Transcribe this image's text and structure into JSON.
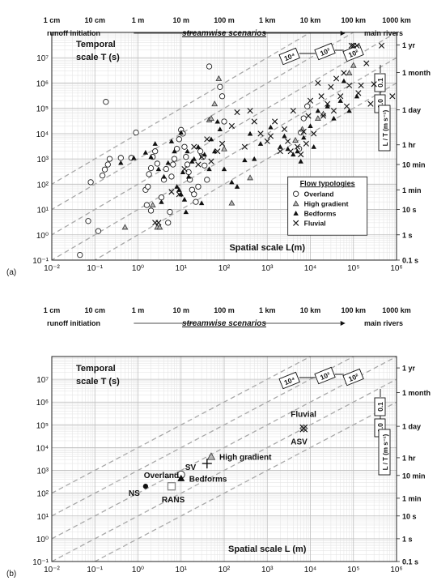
{
  "chart_data": [
    {
      "panel_label": "(a)",
      "type": "scatter",
      "xscale": "log",
      "yscale": "log",
      "xlim": [
        0.01,
        1000000
      ],
      "ylim": [
        0.1,
        100000000
      ],
      "xticks": [
        "10⁻²",
        "10⁻¹",
        "10⁰",
        "10¹",
        "10²",
        "10³",
        "10⁴",
        "10⁵",
        "10⁶"
      ],
      "yticks": [
        "10⁻¹",
        "10⁰",
        "10¹",
        "10²",
        "10³",
        "10⁴",
        "10⁵",
        "10⁶",
        "10⁷"
      ],
      "top_scale": [
        "1 cm",
        "10 cm",
        "1 m",
        "10 m",
        "100 m",
        "1 km",
        "10 km",
        "100 km",
        "1000 km"
      ],
      "top_left_label": "runoff initiation",
      "top_center_label": "streamwise scenarios",
      "top_right_label": "main rivers",
      "right_scale": [
        "1 yr",
        "1 month",
        "1 day",
        "1 hr",
        "10 min",
        "1 min",
        "10 s",
        "1 s",
        "0.1 s"
      ],
      "ylabel_line1": "Temporal",
      "ylabel_line2": "scale T (s)",
      "xlabel": "Spatial scale L(m)",
      "velocity_lines": [
        "10⁴",
        "10³",
        "10²",
        "0.1",
        "1.0"
      ],
      "velocity_axis_label": "L / T (m s⁻¹)",
      "legend_title": "Flow typologies",
      "grid": true,
      "series": [
        {
          "name": "Overland",
          "marker": "circle",
          "points": [
            [
              0.045,
              0.16
            ],
            [
              0.07,
              3.5
            ],
            [
              0.12,
              1.4
            ],
            [
              0.08,
              120
            ],
            [
              0.15,
              220
            ],
            [
              0.17,
              380
            ],
            [
              0.2,
              600
            ],
            [
              0.22,
              1000
            ],
            [
              0.18,
              180000
            ],
            [
              0.4,
              1100
            ],
            [
              0.7,
              1100
            ],
            [
              0.9,
              11000
            ],
            [
              1.5,
              60
            ],
            [
              1.7,
              80
            ],
            [
              1.8,
              250
            ],
            [
              2,
              430
            ],
            [
              2.2,
              1200
            ],
            [
              2.5,
              2000
            ],
            [
              2.8,
              650
            ],
            [
              1.6,
              15
            ],
            [
              2,
              9
            ],
            [
              3.5,
              30
            ],
            [
              4,
              150
            ],
            [
              4.5,
              400
            ],
            [
              5,
              3
            ],
            [
              5.5,
              8
            ],
            [
              6,
              200
            ],
            [
              6.5,
              600
            ],
            [
              7,
              1000
            ],
            [
              8,
              2500
            ],
            [
              9,
              6000
            ],
            [
              10,
              14000
            ],
            [
              11,
              10000
            ],
            [
              12,
              3000
            ],
            [
              13,
              1200
            ],
            [
              14,
              600
            ],
            [
              15,
              300
            ],
            [
              16,
              150
            ],
            [
              18,
              60
            ],
            [
              20,
              40
            ],
            [
              22,
              20
            ],
            [
              25,
              80
            ],
            [
              28,
              2000
            ],
            [
              32,
              1200
            ],
            [
              35,
              550
            ],
            [
              40,
              150
            ],
            [
              45,
              4500000
            ],
            [
              80,
              700000
            ],
            [
              90,
              300000
            ],
            [
              100,
              30000
            ],
            [
              5500,
              2500
            ],
            [
              6000,
              11000
            ],
            [
              7000,
              40000
            ],
            [
              8500,
              120000
            ]
          ]
        },
        {
          "name": "High gradient",
          "marker": "triangle-open",
          "points": [
            [
              0.5,
              2
            ],
            [
              2.2,
              15
            ],
            [
              2.8,
              2
            ],
            [
              3.2,
              2
            ],
            [
              45,
              35000
            ],
            [
              50,
              40000
            ],
            [
              60,
              150000
            ],
            [
              75,
              1500000
            ],
            [
              100,
              2500
            ],
            [
              150,
              18
            ],
            [
              400,
              180
            ],
            [
              4500,
              5500
            ],
            [
              6500,
              15000
            ],
            [
              15000,
              40000
            ],
            [
              20000,
              60000
            ],
            [
              80000,
              2500000
            ],
            [
              100000,
              5000000
            ]
          ]
        },
        {
          "name": "Bedforms",
          "marker": "triangle-filled",
          "points": [
            [
              0.4,
              700
            ],
            [
              0.8,
              1100
            ],
            [
              1.5,
              1800
            ],
            [
              2,
              1200
            ],
            [
              2.5,
              4000
            ],
            [
              3,
              400
            ],
            [
              3.5,
              20
            ],
            [
              4,
              200
            ],
            [
              5,
              700
            ],
            [
              6,
              5000
            ],
            [
              7,
              2000
            ],
            [
              8,
              80
            ],
            [
              9,
              60
            ],
            [
              10,
              40
            ],
            [
              10,
              11000
            ],
            [
              11,
              300
            ],
            [
              12,
              25
            ],
            [
              13,
              8
            ],
            [
              14,
              2000
            ],
            [
              15,
              200
            ],
            [
              18,
              800
            ],
            [
              20,
              1000
            ],
            [
              25,
              3000
            ],
            [
              30,
              18
            ],
            [
              35,
              1500
            ],
            [
              45,
              400
            ],
            [
              50,
              6000
            ],
            [
              60,
              2000
            ],
            [
              70,
              30000
            ],
            [
              80,
              15000
            ],
            [
              100,
              400
            ],
            [
              150,
              120
            ],
            [
              200,
              80
            ],
            [
              300,
              900
            ],
            [
              400,
              10000
            ],
            [
              500,
              1000
            ],
            [
              700,
              4000
            ],
            [
              1200,
              18000
            ],
            [
              2000,
              3000
            ],
            [
              2500,
              8000
            ],
            [
              3000,
              2500
            ],
            [
              4000,
              1500
            ],
            [
              5000,
              2000
            ],
            [
              6000,
              800
            ],
            [
              7000,
              7000
            ],
            [
              10000,
              20000
            ],
            [
              12000,
              3000
            ],
            [
              15000,
              80000
            ],
            [
              25000,
              120000
            ],
            [
              35000,
              40000
            ],
            [
              50000,
              200000
            ],
            [
              60000,
              1200000
            ],
            [
              80000,
              80000
            ],
            [
              120000,
              300000
            ]
          ]
        },
        {
          "name": "Fluvial",
          "marker": "x",
          "points": [
            [
              2.5,
              3
            ],
            [
              3,
              3
            ],
            [
              6,
              50
            ],
            [
              9,
              40
            ],
            [
              12,
              400
            ],
            [
              20,
              3000
            ],
            [
              25,
              600
            ],
            [
              30,
              1200
            ],
            [
              40,
              6000
            ],
            [
              50,
              800
            ],
            [
              70,
              2000
            ],
            [
              90,
              4000
            ],
            [
              150,
              20000
            ],
            [
              200,
              70000
            ],
            [
              300,
              3000
            ],
            [
              400,
              80000
            ],
            [
              500,
              30000
            ],
            [
              700,
              10000
            ],
            [
              1000,
              5000
            ],
            [
              1200,
              8000
            ],
            [
              1500,
              30000
            ],
            [
              2000,
              2000
            ],
            [
              2500,
              15000
            ],
            [
              3000,
              5000
            ],
            [
              3500,
              2000
            ],
            [
              4000,
              80000
            ],
            [
              5000,
              3000
            ],
            [
              6000,
              1500
            ],
            [
              7000,
              12000
            ],
            [
              8000,
              4000
            ],
            [
              9000,
              50000
            ],
            [
              10000,
              200000
            ],
            [
              12000,
              10000
            ],
            [
              15000,
              1000000
            ],
            [
              18000,
              300000
            ],
            [
              20000,
              50000
            ],
            [
              25000,
              150000
            ],
            [
              30000,
              700000
            ],
            [
              35000,
              80000
            ],
            [
              40000,
              1500000
            ],
            [
              50000,
              300000
            ],
            [
              60000,
              2500000
            ],
            [
              70000,
              120000
            ],
            [
              80000,
              800000
            ],
            [
              90000,
              30000000
            ],
            [
              100000,
              30000000
            ],
            [
              120000,
              30000000
            ],
            [
              130000,
              400000
            ],
            [
              150000,
              800000
            ],
            [
              200000,
              6000000
            ],
            [
              250000,
              150000
            ],
            [
              300000,
              900000
            ],
            [
              450000,
              30000000
            ],
            [
              800000,
              300000
            ]
          ]
        }
      ]
    },
    {
      "panel_label": "(b)",
      "type": "scatter",
      "xscale": "log",
      "yscale": "log",
      "xlim": [
        0.01,
        1000000
      ],
      "ylim": [
        0.1,
        100000000
      ],
      "xticks": [
        "10⁻²",
        "10⁻¹",
        "10⁰",
        "10¹",
        "10²",
        "10³",
        "10⁴",
        "10⁵",
        "10⁶"
      ],
      "yticks": [
        "10⁻¹",
        "10⁰",
        "10¹",
        "10²",
        "10³",
        "10⁴",
        "10⁵",
        "10⁶",
        "10⁷"
      ],
      "top_scale": [
        "1 cm",
        "10 cm",
        "1 m",
        "10 m",
        "100 m",
        "1 km",
        "10 km",
        "100 km",
        "1000 km"
      ],
      "top_left_label": "runoff initiation",
      "top_center_label": "streamwise scenarios",
      "top_right_label": "main rivers",
      "right_scale": [
        "1 yr",
        "1 month",
        "1 day",
        "1 hr",
        "10 min",
        "1 min",
        "10 s",
        "1 s",
        "0.1 s"
      ],
      "ylabel_line1": "Temporal",
      "ylabel_line2": "scale T (s)",
      "xlabel": "Spatial scale L (m)",
      "velocity_lines": [
        "10⁴",
        "10³",
        "10²",
        "0.1",
        "1.0"
      ],
      "velocity_axis_label": "L / T (m s⁻¹)",
      "grid": true,
      "points": [
        {
          "label": "Overland",
          "marker": "circle",
          "x": 10,
          "y": 650
        },
        {
          "label": "High gradient",
          "marker": "triangle-open",
          "x": 50,
          "y": 4000
        },
        {
          "label": "Bedforms",
          "marker": "triangle-filled",
          "x": 10,
          "y": 450
        },
        {
          "label": "Fluvial",
          "marker": "diamond",
          "x": 7000,
          "y": 70000
        },
        {
          "label": "NS",
          "marker": "dot",
          "x": 1.5,
          "y": 200
        },
        {
          "label": "RANS",
          "marker": "square-open",
          "x": 6,
          "y": 200
        },
        {
          "label": "SV",
          "marker": "plus",
          "x": 40,
          "y": 2000
        },
        {
          "label": "ASV",
          "marker": "x",
          "x": 7000,
          "y": 70000
        }
      ]
    }
  ]
}
